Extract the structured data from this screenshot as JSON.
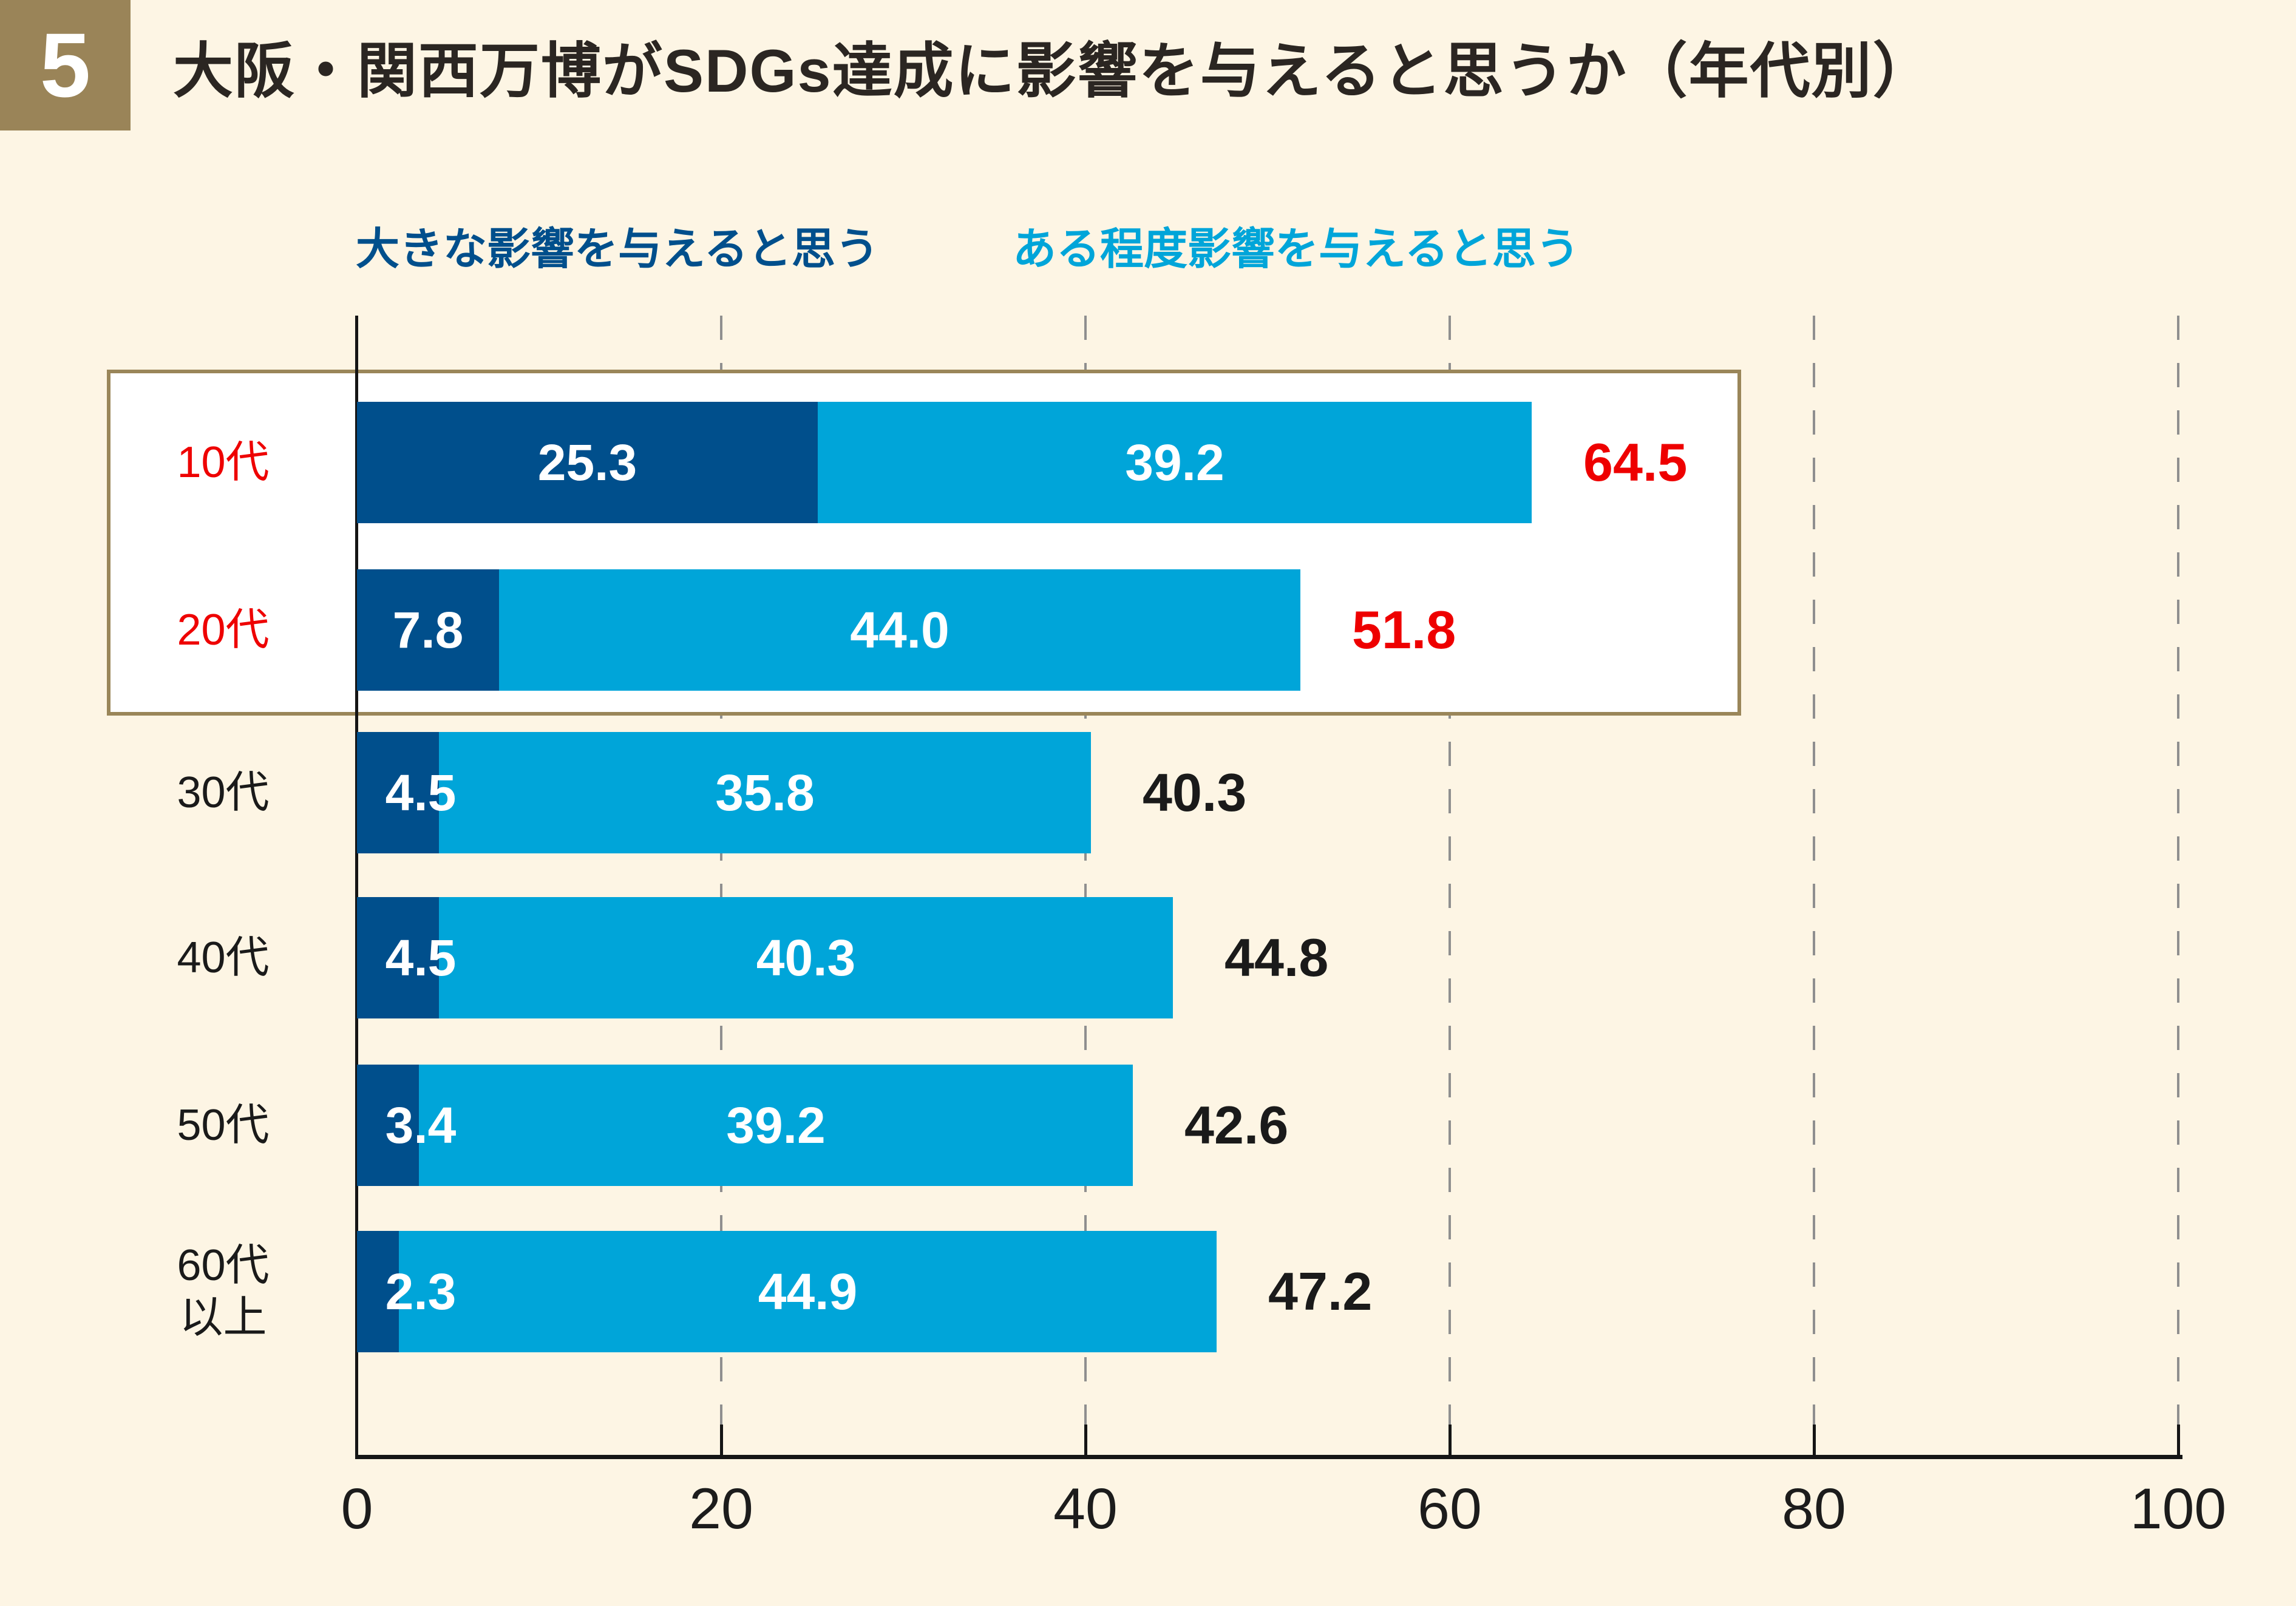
{
  "header": {
    "badge": "5",
    "title": "大阪・関西万博がSDGs達成に影響を与えると思うか（年代別）"
  },
  "legend": [
    {
      "label": "大きな影響を与えると思う",
      "color": "#004f8c"
    },
    {
      "label": "ある程度影響を与えると思う",
      "color": "#00a5d9"
    }
  ],
  "colors": {
    "background": "#fdf5e4",
    "badge_background": "#9a8458",
    "highlight_box_border": "#9a8659",
    "highlight_text": "#ee0000",
    "default_text": "#1a1a1a",
    "axis": "#151515",
    "gridline": "#8f8f8f"
  },
  "chart_data": {
    "type": "bar",
    "orientation": "horizontal",
    "stacked": true,
    "title": "大阪・関西万博がSDGs達成に影響を与えると思うか（年代別）",
    "categories": [
      "10代",
      "20代",
      "30代",
      "40代",
      "50代",
      "60代\n以上"
    ],
    "series": [
      {
        "name": "大きな影響を与えると思う",
        "color": "#004f8c",
        "values": [
          25.3,
          7.8,
          4.5,
          4.5,
          3.4,
          2.3
        ],
        "labels": [
          "25.3",
          "7.8",
          "4.5",
          "4.5",
          "3.4",
          "2.3"
        ]
      },
      {
        "name": "ある程度影響を与えると思う",
        "color": "#00a5d9",
        "values": [
          39.2,
          44.0,
          35.8,
          40.3,
          39.2,
          44.9
        ],
        "labels": [
          "39.2",
          "44.0",
          "35.8",
          "40.3",
          "39.2",
          "44.9"
        ]
      }
    ],
    "totals": {
      "values": [
        64.5,
        51.8,
        40.3,
        44.8,
        42.6,
        47.2
      ],
      "labels": [
        "64.5",
        "51.8",
        "40.3",
        "44.8",
        "42.6",
        "47.2"
      ]
    },
    "highlighted_rows": [
      0,
      1
    ],
    "xlim": [
      0,
      100
    ],
    "x_ticks": [
      0,
      20,
      40,
      60,
      80,
      100
    ],
    "grid": "dashed-vertical",
    "legend_position": "top"
  }
}
